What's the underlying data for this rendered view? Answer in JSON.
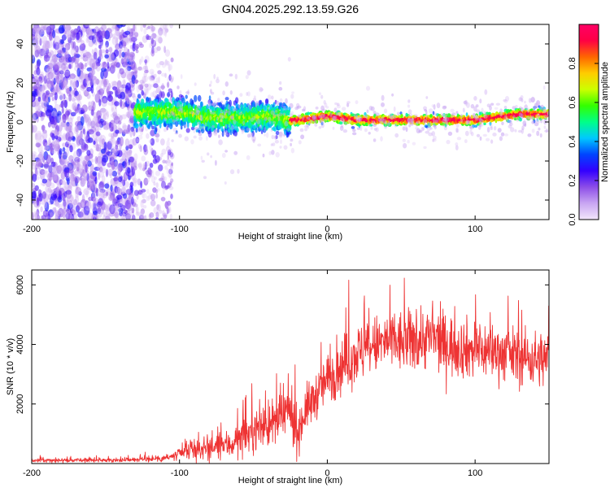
{
  "chart_data": [
    {
      "type": "heatmap",
      "title": "GN04.2025.292.13.59.G26",
      "xlabel": "Height of straight line (km)",
      "ylabel": "Frequency (Hz)",
      "xlim": [
        -200,
        150
      ],
      "ylim": [
        -50,
        50
      ],
      "xticks": [
        -200,
        -100,
        0,
        100
      ],
      "yticks": [
        -40,
        -20,
        0,
        20,
        40
      ],
      "colorbar": {
        "label": "Normalized spectral amplitude",
        "range": [
          0.0,
          1.0
        ],
        "ticks": [
          0.0,
          0.2,
          0.4,
          0.6,
          0.8
        ],
        "tick_labels": [
          "0.0",
          "0.2",
          "0.4",
          "0.6",
          "0.8"
        ],
        "colors": [
          "#f2e6fb",
          "#c9a6f2",
          "#8c4de8",
          "#3300ff",
          "#0044ff",
          "#00c8ff",
          "#00ff88",
          "#33ff00",
          "#ccff00",
          "#ffcc00",
          "#ff6600",
          "#ff0044",
          "#ff0066"
        ]
      },
      "regions": [
        {
          "name": "diffuse noise",
          "x_range": [
            -200,
            -130
          ],
          "freq_range": [
            -50,
            50
          ],
          "amplitude": [
            0.05,
            0.3
          ]
        },
        {
          "name": "noisy transition",
          "x_range": [
            -130,
            -105
          ],
          "freq_range": [
            -50,
            50
          ],
          "amplitude": [
            0.03,
            0.25
          ]
        },
        {
          "name": "signal ridge",
          "x_range": [
            -130,
            150
          ],
          "center_freq_hz": [
            [
              -130,
              5
            ],
            [
              -100,
              5
            ],
            [
              -80,
              2
            ],
            [
              -60,
              2
            ],
            [
              -40,
              3
            ],
            [
              -25,
              1
            ],
            [
              -20,
              1
            ],
            [
              0,
              3
            ],
            [
              20,
              1
            ],
            [
              60,
              1
            ],
            [
              100,
              1
            ],
            [
              130,
              4
            ],
            [
              150,
              4
            ]
          ],
          "amplitude": [
            0.2,
            0.97
          ]
        }
      ]
    },
    {
      "type": "line",
      "xlabel": "Height of straight line (km)",
      "ylabel": "SNR (10 * v/v)",
      "xlim": [
        -200,
        150
      ],
      "ylim": [
        0,
        6500
      ],
      "xticks": [
        -200,
        -100,
        0,
        100
      ],
      "yticks": [
        2000,
        4000,
        6000
      ],
      "line_color": "#ee3333",
      "series": [
        {
          "name": "SNR",
          "x": [
            -200,
            -180,
            -160,
            -140,
            -120,
            -105,
            -95,
            -85,
            -75,
            -65,
            -55,
            -45,
            -35,
            -25,
            -20,
            -15,
            -10,
            -5,
            0,
            5,
            10,
            15,
            20,
            30,
            40,
            50,
            60,
            70,
            80,
            90,
            100,
            110,
            120,
            130,
            140,
            150
          ],
          "mean": [
            100,
            110,
            110,
            120,
            150,
            220,
            380,
            500,
            550,
            650,
            950,
            1250,
            1350,
            1800,
            1000,
            1800,
            2100,
            2500,
            2800,
            3100,
            3300,
            3500,
            3700,
            3900,
            4100,
            4050,
            4150,
            4250,
            4000,
            3900,
            3800,
            3800,
            3700,
            3600,
            3500,
            3500
          ],
          "spread": [
            60,
            60,
            60,
            60,
            80,
            150,
            250,
            350,
            400,
            450,
            550,
            650,
            750,
            900,
            700,
            700,
            700,
            700,
            800,
            850,
            850,
            900,
            900,
            900,
            900,
            950,
            950,
            950,
            950,
            900,
            900,
            850,
            850,
            850,
            850,
            850
          ]
        }
      ]
    }
  ]
}
